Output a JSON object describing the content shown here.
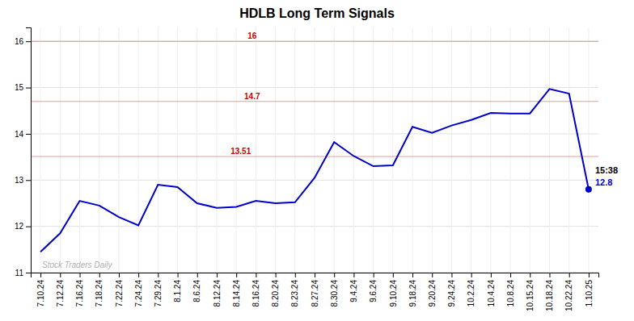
{
  "chart_data": {
    "type": "line",
    "title": "HDLB Long Term Signals",
    "watermark": "Stock Traders Daily",
    "categories": [
      "7.10.24",
      "7.12.24",
      "7.16.24",
      "7.18.24",
      "7.22.24",
      "7.24.24",
      "7.29.24",
      "8.1.24",
      "8.6.24",
      "8.12.24",
      "8.14.24",
      "8.16.24",
      "8.20.24",
      "8.23.24",
      "8.27.24",
      "8.30.24",
      "9.4.24",
      "9.6.24",
      "9.10.24",
      "9.18.24",
      "9.20.24",
      "9.24.24",
      "10.2.24",
      "10.4.24",
      "10.8.24",
      "10.15.24",
      "10.18.24",
      "10.22.24",
      "1.10.25"
    ],
    "values": [
      11.45,
      11.85,
      12.55,
      12.45,
      12.2,
      12.02,
      12.9,
      12.85,
      12.5,
      12.4,
      12.42,
      12.55,
      12.5,
      12.52,
      13.05,
      13.82,
      13.52,
      13.3,
      13.32,
      14.15,
      14.02,
      14.18,
      14.3,
      14.45,
      14.44,
      14.44,
      14.97,
      14.87,
      12.8
    ],
    "color": "#0000cc",
    "ylim": [
      11.0,
      16.3
    ],
    "yticks": [
      11,
      12,
      13,
      14,
      15,
      16
    ],
    "grid": true,
    "hlines": [
      {
        "value": 16.0,
        "label": "16",
        "color": "#cc0000"
      },
      {
        "value": 14.7,
        "label": "14.7",
        "color": "#cc0000"
      },
      {
        "value": 13.51,
        "label": "13.51",
        "color": "#cc0000"
      }
    ],
    "annotations": [
      {
        "text": "15:38",
        "color": "#000000"
      },
      {
        "text": "12.8",
        "color": "#0000dd"
      }
    ]
  }
}
